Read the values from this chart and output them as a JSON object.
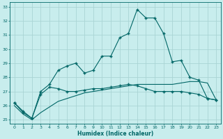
{
  "xlabel": "Humidex (Indice chaleur)",
  "xlim": [
    -0.5,
    23.5
  ],
  "ylim": [
    24.7,
    33.3
  ],
  "yticks": [
    25,
    26,
    27,
    28,
    29,
    30,
    31,
    32,
    33
  ],
  "xticks": [
    0,
    1,
    2,
    3,
    4,
    5,
    6,
    7,
    8,
    9,
    10,
    11,
    12,
    13,
    14,
    15,
    16,
    17,
    18,
    19,
    20,
    21,
    22,
    23
  ],
  "bg_color": "#c8eded",
  "grid_color": "#aad4d4",
  "line_color": "#006666",
  "series1_x": [
    0,
    1,
    2,
    3,
    4,
    5,
    6,
    7,
    8,
    9,
    10,
    11,
    12,
    13,
    14,
    15,
    16,
    17,
    18,
    19,
    20,
    21,
    22,
    23
  ],
  "series1_y": [
    26.2,
    25.6,
    25.1,
    27.0,
    27.5,
    28.5,
    28.8,
    29.0,
    28.3,
    28.5,
    29.5,
    29.5,
    30.8,
    31.1,
    32.8,
    32.2,
    32.2,
    31.1,
    29.1,
    29.2,
    28.0,
    27.8,
    26.5,
    26.4
  ],
  "series2_x": [
    0,
    1,
    2,
    3,
    4,
    5,
    6,
    7,
    8,
    9,
    10,
    11,
    12,
    13,
    14,
    15,
    16,
    17,
    18,
    19,
    20,
    21,
    22,
    23
  ],
  "series2_y": [
    26.2,
    25.5,
    25.1,
    26.8,
    27.3,
    27.2,
    27.0,
    27.0,
    27.1,
    27.2,
    27.2,
    27.3,
    27.4,
    27.5,
    27.4,
    27.2,
    27.0,
    27.0,
    27.0,
    27.0,
    26.9,
    26.8,
    26.5,
    26.4
  ],
  "series3_x": [
    0,
    1,
    2,
    3,
    4,
    5,
    6,
    7,
    8,
    9,
    10,
    11,
    12,
    13,
    14,
    15,
    16,
    17,
    18,
    19,
    20,
    21,
    22,
    23
  ],
  "series3_y": [
    26.0,
    25.4,
    25.0,
    25.5,
    25.9,
    26.3,
    26.5,
    26.7,
    26.9,
    27.0,
    27.1,
    27.2,
    27.3,
    27.4,
    27.5,
    27.5,
    27.5,
    27.5,
    27.5,
    27.6,
    27.7,
    27.7,
    27.6,
    26.4
  ]
}
